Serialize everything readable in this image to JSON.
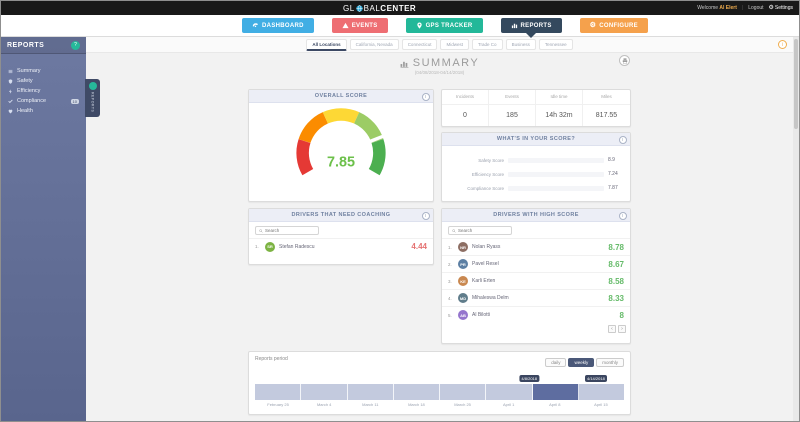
{
  "topbar": {
    "logo_prefix": "GL",
    "logo_middle": "BAL",
    "logo_suffix": "CENTER",
    "welcome_label": "Welcome",
    "user_name": "Al Elert",
    "logout_label": "Logout",
    "settings_label": "Settings"
  },
  "nav": {
    "items": [
      {
        "label": "DASHBOARD",
        "style": "background:#41aee4"
      },
      {
        "label": "EVENTS",
        "style": "background:#ee6e73"
      },
      {
        "label": "GPS TRACKER",
        "style": "background:#23b899"
      },
      {
        "label": "REPORTS",
        "style": "background:#34495e"
      },
      {
        "label": "CONFIGURE",
        "style": "background:#f5a14c"
      }
    ],
    "active": "REPORTS"
  },
  "sidebar": {
    "title": "REPORTS",
    "items": [
      {
        "label": "Summary"
      },
      {
        "label": "Safety"
      },
      {
        "label": "Efficiency"
      },
      {
        "label": "Compliance",
        "badge": "10"
      },
      {
        "label": "Health"
      }
    ],
    "collapse_tag": "REPORTS"
  },
  "tabs": {
    "items": [
      "All Locations",
      "California, Nevada",
      "Connecticut",
      "Midwest",
      "Trade Co",
      "Business",
      "Tennessee"
    ],
    "active": "All Locations",
    "info_icon": "i"
  },
  "summary_header": {
    "title": "SUMMARY",
    "date_range": "(04/08/2018-04/14/2018)"
  },
  "overall_score": {
    "header": "OVERALL SCORE",
    "value": "7.85",
    "value_color": "#6cc04a",
    "gauge_colors": [
      "#e53935",
      "#fb8c00",
      "#fdd835",
      "#9ccc65",
      "#4caf50"
    ],
    "info": "i"
  },
  "stats": {
    "columns": [
      {
        "label": "Incidents",
        "value": "0"
      },
      {
        "label": "Events",
        "value": "185"
      },
      {
        "label": "Idle time",
        "value": "14h 32m"
      },
      {
        "label": "Miles",
        "value": "817.55"
      }
    ]
  },
  "score_breakdown": {
    "header": "WHAT'S IN YOUR SCORE?",
    "info": "i",
    "rows": [
      {
        "label": "Safety Score",
        "value": "8.9",
        "bar_style": "width:89%;background:#41aee4"
      },
      {
        "label": "Efficiency Score",
        "value": "7.24",
        "bar_style": "width:72%;background:#23b899"
      },
      {
        "label": "Compliance Score",
        "value": "7.87",
        "bar_style": "width:79%;background:#f5a14c"
      }
    ]
  },
  "coaching": {
    "header": "DRIVERS THAT NEED COACHING",
    "info": "i",
    "search_placeholder": "Search",
    "rows": [
      {
        "rank": "1.",
        "name": "Stefan Radescu",
        "initials": "SR",
        "score": "4.44",
        "avatar_style": "background:#7cb342"
      }
    ]
  },
  "high_score": {
    "header": "DRIVERS WITH HIGH SCORE",
    "info": "i",
    "search_placeholder": "Search",
    "rows": [
      {
        "rank": "1.",
        "name": "Nolan Ryass",
        "initials": "NR",
        "score": "8.78",
        "avatar_style": "background:#8d6e63"
      },
      {
        "rank": "2.",
        "name": "Pavel Resel",
        "initials": "PR",
        "score": "8.67",
        "avatar_style": "background:#5c7fa3"
      },
      {
        "rank": "3.",
        "name": "Karli Erten",
        "initials": "KE",
        "score": "8.58",
        "avatar_style": "background:#c98850"
      },
      {
        "rank": "4.",
        "name": "Mihaleswa Delm",
        "initials": "MD",
        "score": "8.33",
        "avatar_style": "background:#607d8b"
      },
      {
        "rank": "5.",
        "name": "Al Bilotti",
        "initials": "AB",
        "score": "8",
        "avatar_style": "background:#9575cd"
      }
    ],
    "pagination": {
      "prev": "‹",
      "next": "›"
    }
  },
  "reports_period": {
    "label": "Reports period",
    "buttons": [
      {
        "label": "daily"
      },
      {
        "label": "weekly"
      },
      {
        "label": "monthly"
      }
    ],
    "active_button": "weekly",
    "segments": 8,
    "selected_index": 6,
    "range_start": "4/8/2018",
    "range_end": "4/14/2018",
    "axis_labels": [
      "February 25",
      "March 4",
      "March 11",
      "March 18",
      "March 25",
      "April 1",
      "April 8",
      "April 15"
    ]
  },
  "colors": {
    "positive_score": "#66bb6a",
    "negative_score": "#e57373",
    "timeline": "#c3cade",
    "timeline_selected": "#5e6da0",
    "sidebar": "#6d79a1",
    "header_bg": "#eceef6"
  }
}
